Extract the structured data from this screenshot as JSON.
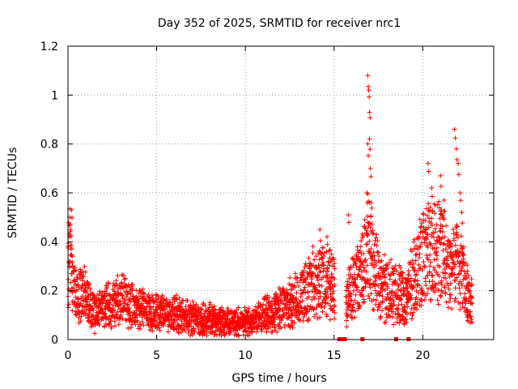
{
  "chart_data": {
    "type": "scatter",
    "title": "Day 352 of 2025, SRMTID for receiver nrc1",
    "xlabel": "GPS time / hours",
    "ylabel": "SRMTID / TECUs",
    "xlim": [
      0,
      24
    ],
    "ylim": [
      0,
      1.2
    ],
    "x_ticks": [
      "0",
      "5",
      "10",
      "15",
      "20"
    ],
    "x_tick_values": [
      0,
      5,
      10,
      15,
      20
    ],
    "y_ticks": [
      "0",
      "0.2",
      "0.4",
      "0.6",
      "0.8",
      "1",
      "1.2"
    ],
    "y_tick_values": [
      0,
      0.2,
      0.4,
      0.6,
      0.8,
      1.0,
      1.2
    ],
    "grid": true,
    "marker": "plus",
    "color": "#ff0000",
    "profile": [
      [
        0.0,
        0.28
      ],
      [
        0.1,
        0.33
      ],
      [
        0.3,
        0.2
      ],
      [
        0.6,
        0.18
      ],
      [
        0.9,
        0.2
      ],
      [
        1.2,
        0.15
      ],
      [
        1.5,
        0.1
      ],
      [
        2.0,
        0.13
      ],
      [
        2.5,
        0.15
      ],
      [
        3.0,
        0.16
      ],
      [
        3.5,
        0.14
      ],
      [
        4.0,
        0.13
      ],
      [
        4.5,
        0.12
      ],
      [
        5.0,
        0.11
      ],
      [
        5.5,
        0.11
      ],
      [
        6.0,
        0.1
      ],
      [
        6.5,
        0.1
      ],
      [
        7.0,
        0.09
      ],
      [
        7.5,
        0.08
      ],
      [
        8.0,
        0.08
      ],
      [
        8.5,
        0.07
      ],
      [
        9.0,
        0.07
      ],
      [
        9.5,
        0.07
      ],
      [
        10.0,
        0.07
      ],
      [
        10.5,
        0.08
      ],
      [
        11.0,
        0.1
      ],
      [
        11.5,
        0.11
      ],
      [
        12.0,
        0.13
      ],
      [
        12.5,
        0.15
      ],
      [
        13.0,
        0.17
      ],
      [
        13.5,
        0.21
      ],
      [
        14.0,
        0.25
      ],
      [
        14.5,
        0.23
      ],
      [
        15.0,
        0.22
      ],
      [
        15.7,
        0.16
      ],
      [
        16.0,
        0.22
      ],
      [
        16.5,
        0.26
      ],
      [
        16.9,
        0.4
      ],
      [
        17.2,
        0.32
      ],
      [
        17.6,
        0.22
      ],
      [
        18.0,
        0.2
      ],
      [
        18.5,
        0.2
      ],
      [
        19.0,
        0.16
      ],
      [
        19.5,
        0.26
      ],
      [
        20.0,
        0.32
      ],
      [
        20.5,
        0.38
      ],
      [
        21.0,
        0.36
      ],
      [
        21.5,
        0.3
      ],
      [
        22.0,
        0.3
      ],
      [
        22.5,
        0.2
      ],
      [
        22.8,
        0.14
      ]
    ],
    "peaks": [
      [
        0.1,
        0.5
      ],
      [
        0.2,
        0.53
      ],
      [
        0.15,
        0.45
      ],
      [
        16.9,
        1.08
      ],
      [
        16.95,
        1.02
      ],
      [
        17.0,
        0.93
      ],
      [
        16.9,
        0.8
      ],
      [
        17.0,
        0.82
      ],
      [
        17.05,
        0.7
      ],
      [
        16.85,
        0.6
      ],
      [
        17.1,
        0.56
      ],
      [
        20.3,
        0.72
      ],
      [
        20.5,
        0.62
      ],
      [
        21.0,
        0.67
      ],
      [
        21.2,
        0.57
      ],
      [
        21.8,
        0.86
      ],
      [
        21.9,
        0.78
      ],
      [
        22.0,
        0.72
      ],
      [
        22.1,
        0.6
      ],
      [
        22.2,
        0.52
      ],
      [
        15.8,
        0.51
      ],
      [
        14.2,
        0.45
      ],
      [
        14.6,
        0.42
      ]
    ],
    "gap_markers_x": [
      15.3,
      15.5,
      15.6,
      16.6,
      18.5,
      19.2
    ],
    "gap_marker_y": 0
  }
}
